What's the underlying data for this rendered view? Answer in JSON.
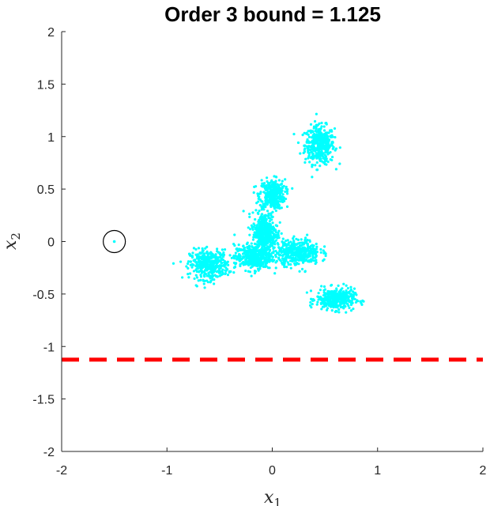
{
  "chart_data": {
    "type": "scatter",
    "title": "Order 3 bound = 1.125",
    "xlabel_main": "x",
    "xlabel_sub": "1",
    "ylabel_main": "x",
    "ylabel_sub": "2",
    "xlim": [
      -2,
      2
    ],
    "ylim": [
      -2,
      2
    ],
    "xticks": [
      -2,
      -1,
      0,
      1,
      2
    ],
    "xtick_labels": [
      "-2",
      "-1",
      "0",
      "1",
      "2"
    ],
    "yticks": [
      -2,
      -1.5,
      -1,
      -0.5,
      0,
      0.5,
      1,
      1.5,
      2
    ],
    "ytick_labels": [
      "-2",
      "-1.5",
      "-1",
      "-0.5",
      "0",
      "0.5",
      "1",
      "1.5",
      "2"
    ],
    "grid": false,
    "point_color": "#00FFFF",
    "bound_color": "#FF0000",
    "marker_color": "#000000",
    "bound_line_y": -1.125,
    "reference_point": {
      "x": -1.5,
      "y": 0
    },
    "clusters": [
      {
        "cx": 0.45,
        "cy": 0.92,
        "sx": 0.07,
        "sy": 0.09,
        "n": 420
      },
      {
        "cx": 0.0,
        "cy": 0.45,
        "sx": 0.06,
        "sy": 0.07,
        "n": 380
      },
      {
        "cx": -0.6,
        "cy": -0.22,
        "sx": 0.09,
        "sy": 0.07,
        "n": 400
      },
      {
        "cx": 0.6,
        "cy": -0.55,
        "sx": 0.09,
        "sy": 0.05,
        "n": 380
      },
      {
        "cx": -0.07,
        "cy": 0.08,
        "sx": 0.06,
        "sy": 0.1,
        "n": 420
      },
      {
        "cx": -0.18,
        "cy": -0.15,
        "sx": 0.09,
        "sy": 0.06,
        "n": 400
      },
      {
        "cx": 0.25,
        "cy": -0.1,
        "sx": 0.1,
        "sy": 0.06,
        "n": 400
      }
    ]
  }
}
